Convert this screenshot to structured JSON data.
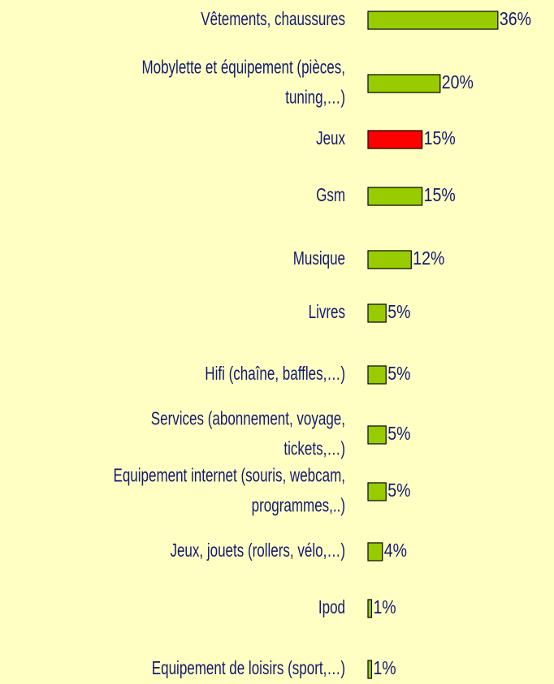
{
  "chart_data": {
    "type": "barh",
    "categories": [
      [
        "Vêtements, chaussures"
      ],
      [
        "Mobylette et équipement (pièces,",
        "tuning,…)"
      ],
      [
        "Jeux"
      ],
      [
        "Gsm"
      ],
      [
        "Musique"
      ],
      [
        "Livres"
      ],
      [
        "Hifi (chaîne, baffles,…)"
      ],
      [
        "Services (abonnement, voyage,",
        "tickets,…)"
      ],
      [
        "Equipement internet (souris, webcam,",
        "programmes,..)"
      ],
      [
        "Jeux, jouets (rollers, vélo,…)"
      ],
      [
        "Ipod"
      ],
      [
        "Equipement de loisirs (sport,…)"
      ]
    ],
    "values": [
      36,
      20,
      15,
      15,
      12,
      5,
      5,
      5,
      5,
      4,
      1,
      1
    ],
    "value_labels": [
      "36%",
      "20%",
      "15%",
      "15%",
      "12%",
      "5%",
      "5%",
      "5%",
      "5%",
      "4%",
      "1%",
      "1%"
    ],
    "colors": [
      "#99cc00",
      "#99cc00",
      "#ff0000",
      "#99cc00",
      "#99cc00",
      "#99cc00",
      "#99cc00",
      "#99cc00",
      "#99cc00",
      "#99cc00",
      "#99cc00",
      "#99cc00"
    ]
  }
}
